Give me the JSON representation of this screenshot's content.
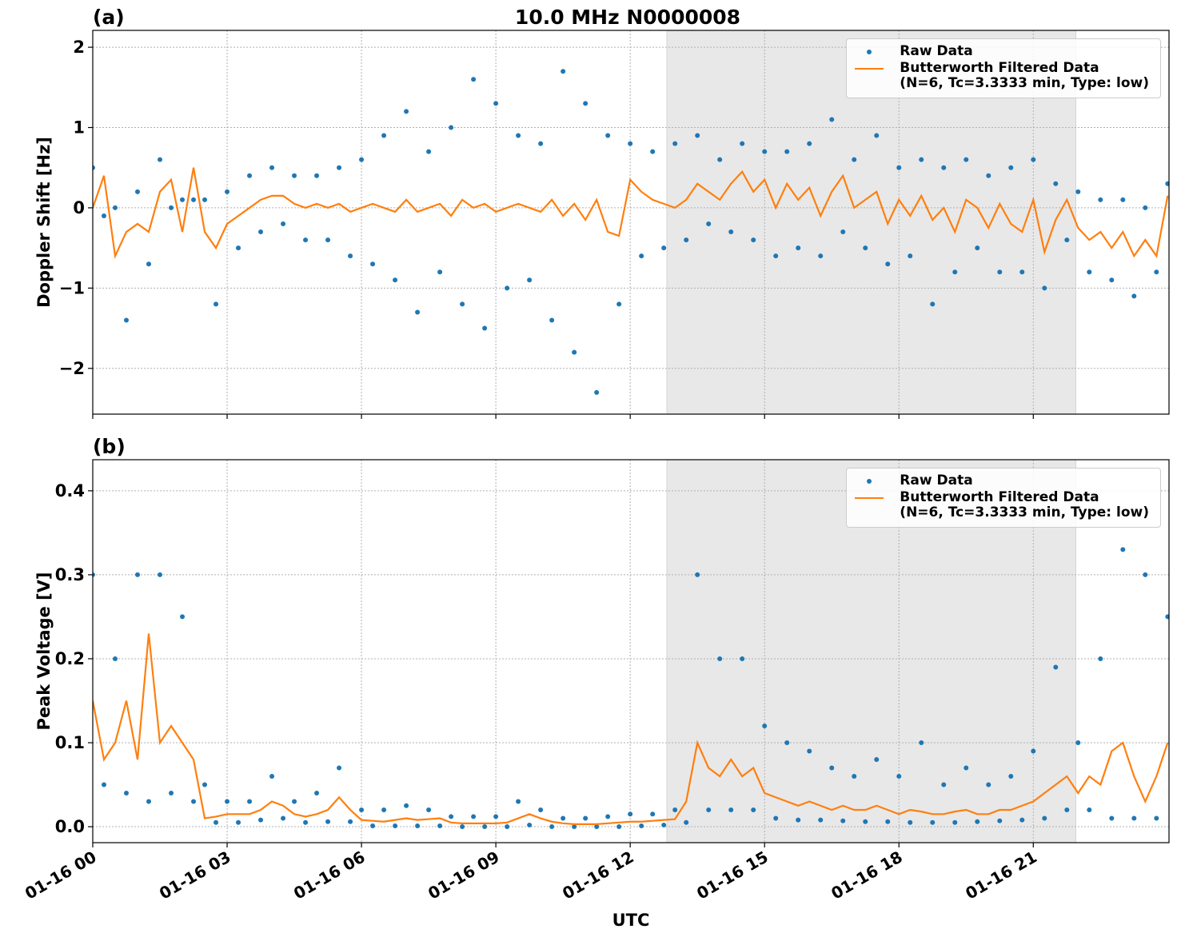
{
  "title": "10.0 MHz N0000008",
  "chart_data": [
    {
      "type": "scatter",
      "title": "(a)",
      "ylabel": "Doppler Shift [Hz]",
      "x": [
        0,
        0.25,
        0.5,
        0.75,
        1,
        1.25,
        1.5,
        1.75,
        2,
        2.25,
        2.5,
        2.75,
        3,
        3.25,
        3.5,
        3.75,
        4,
        4.25,
        4.5,
        4.75,
        5,
        5.25,
        5.5,
        5.75,
        6,
        6.25,
        6.5,
        6.75,
        7,
        7.25,
        7.5,
        7.75,
        8,
        8.25,
        8.5,
        8.75,
        9,
        9.25,
        9.5,
        9.75,
        10,
        10.25,
        10.5,
        10.75,
        11,
        11.25,
        11.5,
        11.75,
        12,
        12.25,
        12.5,
        12.75,
        13,
        13.25,
        13.5,
        13.75,
        14,
        14.25,
        14.5,
        14.75,
        15,
        15.25,
        15.5,
        15.75,
        16,
        16.25,
        16.5,
        16.75,
        17,
        17.25,
        17.5,
        17.75,
        18,
        18.25,
        18.5,
        18.75,
        19,
        19.25,
        19.5,
        19.75,
        20,
        20.25,
        20.5,
        20.75,
        21,
        21.25,
        21.5,
        21.75,
        22,
        22.25,
        22.5,
        22.75,
        23,
        23.25,
        23.5,
        23.75,
        24
      ],
      "series": [
        {
          "name": "Raw Data",
          "type": "scatter",
          "color": "#1f77b4",
          "values": [
            0.5,
            -0.1,
            0.0,
            -1.4,
            0.2,
            -0.7,
            0.6,
            0.0,
            0.1,
            0.1,
            0.1,
            -1.2,
            0.2,
            -0.5,
            0.4,
            -0.3,
            0.5,
            -0.2,
            0.4,
            -0.4,
            0.4,
            -0.4,
            0.5,
            -0.6,
            0.6,
            -0.7,
            0.9,
            -0.9,
            1.2,
            -1.3,
            0.7,
            -0.8,
            1.0,
            -1.2,
            1.6,
            -1.5,
            1.3,
            -1.0,
            0.9,
            -0.9,
            0.8,
            -1.4,
            1.7,
            -1.8,
            1.3,
            -2.3,
            0.9,
            -1.2,
            0.8,
            -0.6,
            0.7,
            -0.5,
            0.8,
            -0.4,
            0.9,
            -0.2,
            0.6,
            -0.3,
            0.8,
            -0.4,
            0.7,
            -0.6,
            0.7,
            -0.5,
            0.8,
            -0.6,
            1.1,
            -0.3,
            0.6,
            -0.5,
            0.9,
            -0.7,
            0.5,
            -0.6,
            0.6,
            -1.2,
            0.5,
            -0.8,
            0.6,
            -0.5,
            0.4,
            -0.8,
            0.5,
            -0.8,
            0.6,
            -1.0,
            0.3,
            -0.4,
            0.2,
            -0.8,
            0.1,
            -0.9,
            0.1,
            -1.1,
            0.0,
            -0.8,
            0.3
          ]
        },
        {
          "name": "Butterworth Filtered Data\n(N=6, Tc=3.3333 min, Type: low)",
          "type": "line",
          "color": "#ff7f0e",
          "values": [
            0.0,
            0.4,
            -0.6,
            -0.3,
            -0.2,
            -0.3,
            0.2,
            0.35,
            -0.3,
            0.5,
            -0.3,
            -0.5,
            -0.2,
            -0.1,
            0.0,
            0.1,
            0.15,
            0.15,
            0.05,
            0.0,
            0.05,
            0.0,
            0.05,
            -0.05,
            0.0,
            0.05,
            0.0,
            -0.05,
            0.1,
            -0.05,
            0.0,
            0.05,
            -0.1,
            0.1,
            0.0,
            0.05,
            -0.05,
            0.0,
            0.05,
            0.0,
            -0.05,
            0.1,
            -0.1,
            0.05,
            -0.15,
            0.1,
            -0.3,
            -0.35,
            0.35,
            0.2,
            0.1,
            0.05,
            0.0,
            0.1,
            0.3,
            0.2,
            0.1,
            0.3,
            0.45,
            0.2,
            0.35,
            0.0,
            0.3,
            0.1,
            0.25,
            -0.1,
            0.2,
            0.4,
            0.0,
            0.1,
            0.2,
            -0.2,
            0.1,
            -0.1,
            0.15,
            -0.15,
            0.0,
            -0.3,
            0.1,
            0.0,
            -0.25,
            0.05,
            -0.2,
            -0.3,
            0.1,
            -0.55,
            -0.15,
            0.1,
            -0.25,
            -0.4,
            -0.3,
            -0.5,
            -0.3,
            -0.6,
            -0.4,
            -0.6,
            0.15
          ]
        }
      ],
      "xlim": [
        0,
        24.03
      ],
      "xticks": [
        0,
        3,
        6,
        9,
        12,
        15,
        18,
        21
      ],
      "ylim": [
        -2.57,
        2.21
      ],
      "yticks": [
        {
          "value": -2,
          "label": "−2"
        },
        {
          "value": -1,
          "label": "−1"
        },
        0,
        1,
        2
      ],
      "shaded_span": [
        12.82,
        21.95
      ],
      "shade_color": "#e8e8e8",
      "grid": true,
      "legend": "upper right"
    },
    {
      "type": "scatter",
      "title": "(b)",
      "ylabel": "Peak Voltage [V]",
      "xlabel": "UTC",
      "x": [
        0,
        0.25,
        0.5,
        0.75,
        1,
        1.25,
        1.5,
        1.75,
        2,
        2.25,
        2.5,
        2.75,
        3,
        3.25,
        3.5,
        3.75,
        4,
        4.25,
        4.5,
        4.75,
        5,
        5.25,
        5.5,
        5.75,
        6,
        6.25,
        6.5,
        6.75,
        7,
        7.25,
        7.5,
        7.75,
        8,
        8.25,
        8.5,
        8.75,
        9,
        9.25,
        9.5,
        9.75,
        10,
        10.25,
        10.5,
        10.75,
        11,
        11.25,
        11.5,
        11.75,
        12,
        12.25,
        12.5,
        12.75,
        13,
        13.25,
        13.5,
        13.75,
        14,
        14.25,
        14.5,
        14.75,
        15,
        15.25,
        15.5,
        15.75,
        16,
        16.25,
        16.5,
        16.75,
        17,
        17.25,
        17.5,
        17.75,
        18,
        18.25,
        18.5,
        18.75,
        19,
        19.25,
        19.5,
        19.75,
        20,
        20.25,
        20.5,
        20.75,
        21,
        21.25,
        21.5,
        21.75,
        22,
        22.25,
        22.5,
        22.75,
        23,
        23.25,
        23.5,
        23.75,
        24
      ],
      "series": [
        {
          "name": "Raw Data",
          "type": "scatter",
          "color": "#1f77b4",
          "values": [
            0.3,
            0.05,
            0.2,
            0.04,
            0.3,
            0.03,
            0.3,
            0.04,
            0.25,
            0.03,
            0.05,
            0.005,
            0.03,
            0.005,
            0.03,
            0.008,
            0.06,
            0.01,
            0.03,
            0.005,
            0.04,
            0.006,
            0.07,
            0.006,
            0.02,
            0.001,
            0.02,
            0.001,
            0.025,
            0.001,
            0.02,
            0.001,
            0.012,
            0.0,
            0.012,
            0.0,
            0.012,
            0.0,
            0.03,
            0.002,
            0.02,
            0.0,
            0.01,
            0.0,
            0.01,
            0.0,
            0.012,
            0.0,
            0.015,
            0.001,
            0.015,
            0.002,
            0.02,
            0.005,
            0.3,
            0.02,
            0.2,
            0.02,
            0.2,
            0.02,
            0.12,
            0.01,
            0.1,
            0.008,
            0.09,
            0.008,
            0.07,
            0.007,
            0.06,
            0.006,
            0.08,
            0.006,
            0.06,
            0.005,
            0.1,
            0.005,
            0.05,
            0.005,
            0.07,
            0.006,
            0.05,
            0.007,
            0.06,
            0.008,
            0.09,
            0.01,
            0.19,
            0.02,
            0.1,
            0.02,
            0.2,
            0.01,
            0.33,
            0.01,
            0.3,
            0.01,
            0.25
          ]
        },
        {
          "name": "Butterworth Filtered Data\n(N=6, Tc=3.3333 min, Type: low)",
          "type": "line",
          "color": "#ff7f0e",
          "values": [
            0.15,
            0.08,
            0.1,
            0.15,
            0.08,
            0.23,
            0.1,
            0.12,
            0.1,
            0.08,
            0.01,
            0.012,
            0.015,
            0.015,
            0.015,
            0.02,
            0.03,
            0.025,
            0.015,
            0.012,
            0.015,
            0.02,
            0.035,
            0.02,
            0.008,
            0.007,
            0.006,
            0.008,
            0.01,
            0.008,
            0.009,
            0.01,
            0.005,
            0.004,
            0.004,
            0.004,
            0.004,
            0.005,
            0.01,
            0.015,
            0.01,
            0.006,
            0.004,
            0.003,
            0.003,
            0.003,
            0.004,
            0.005,
            0.006,
            0.006,
            0.007,
            0.008,
            0.009,
            0.03,
            0.1,
            0.07,
            0.06,
            0.08,
            0.06,
            0.07,
            0.04,
            0.035,
            0.03,
            0.025,
            0.03,
            0.025,
            0.02,
            0.025,
            0.02,
            0.02,
            0.025,
            0.02,
            0.015,
            0.02,
            0.018,
            0.015,
            0.015,
            0.018,
            0.02,
            0.015,
            0.015,
            0.02,
            0.02,
            0.025,
            0.03,
            0.04,
            0.05,
            0.06,
            0.04,
            0.06,
            0.05,
            0.09,
            0.1,
            0.06,
            0.03,
            0.06,
            0.1
          ]
        }
      ],
      "xlim": [
        0,
        24.03
      ],
      "xticks": [
        {
          "value": 0,
          "label": "01-16 00"
        },
        {
          "value": 3,
          "label": "01-16 03"
        },
        {
          "value": 6,
          "label": "01-16 06"
        },
        {
          "value": 9,
          "label": "01-16 09"
        },
        {
          "value": 12,
          "label": "01-16 12"
        },
        {
          "value": 15,
          "label": "01-16 15"
        },
        {
          "value": 18,
          "label": "01-16 18"
        },
        {
          "value": 21,
          "label": "01-16 21"
        }
      ],
      "ylim": [
        -0.019,
        0.437
      ],
      "yticks": [
        {
          "value": 0,
          "label": "0.0"
        },
        0.1,
        0.2,
        0.3,
        0.4
      ],
      "shaded_span": [
        12.82,
        21.95
      ],
      "shade_color": "#e8e8e8",
      "grid": true,
      "legend": "upper right"
    }
  ]
}
